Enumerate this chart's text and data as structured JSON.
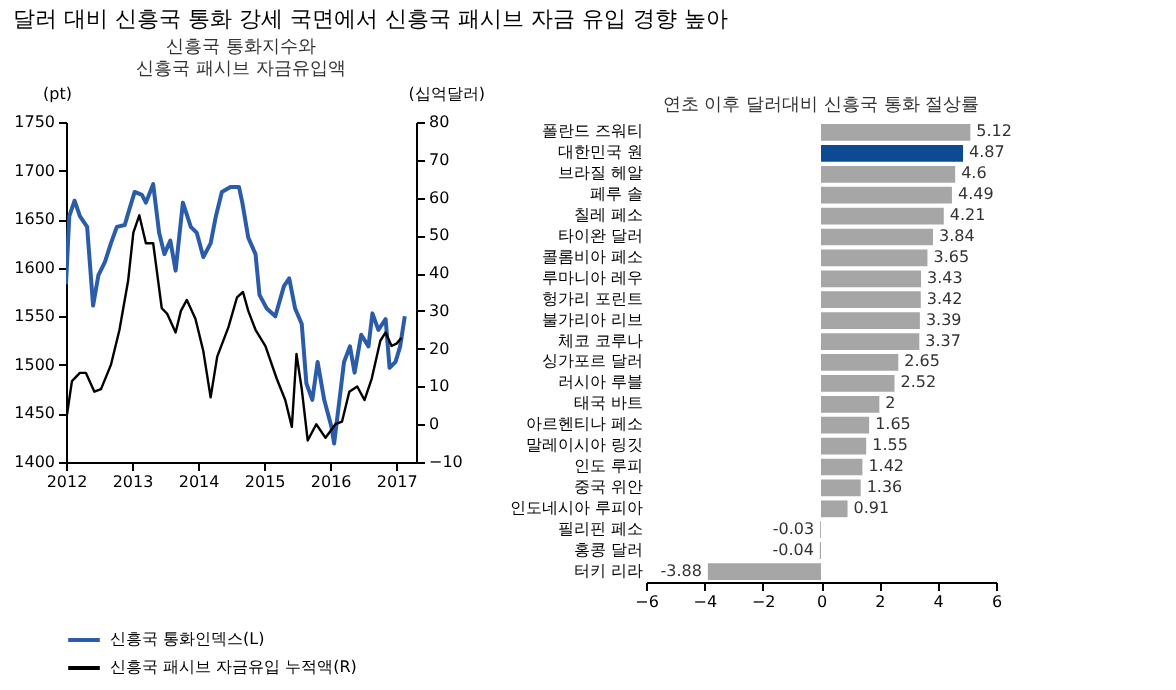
{
  "chart_data": [
    {
      "type": "line",
      "title": "신흥국 통화지수와\n신흥국 패시브 자금유입액",
      "annotations": [
        "달러 대비 신흥국 통화 강세 국면에서 신흥국 패시브 자금 유입 경향 높아"
      ],
      "ylabel": "(pt)",
      "y2label": "(십억달러)",
      "xlim": [
        2012,
        2017.3
      ],
      "xticks": [
        2012,
        2013,
        2014,
        2015,
        2016,
        2017
      ],
      "ylim": [
        1400,
        1750
      ],
      "yticks": [
        1400,
        1450,
        1500,
        1550,
        1600,
        1650,
        1700,
        1750
      ],
      "y2lim": [
        -10,
        80
      ],
      "y2ticks": [
        -10,
        0,
        10,
        20,
        30,
        40,
        50,
        60,
        70,
        80
      ],
      "grid": false,
      "legend": "bottom",
      "series": [
        {
          "name": "신흥국 통화인덱스(L)",
          "color": "#2a5caa",
          "x": [
            2012,
            2012.05,
            2012.13,
            2012.21,
            2012.32,
            2012.41,
            2012.49,
            2012.59,
            2012.68,
            2012.77,
            2012.89,
            2012.95,
            2013.04,
            2013.15,
            2013.21,
            2013.32,
            2013.41,
            2013.49,
            2013.58,
            2013.66,
            2013.77,
            2013.89,
            2013.98,
            2014.08,
            2014.19,
            2014.27,
            2014.36,
            2014.49,
            2014.62,
            2014.67,
            2014.76,
            2014.87,
            2014.93,
            2015.04,
            2015.17,
            2015.3,
            2015.38,
            2015.47,
            2015.57,
            2015.64,
            2015.73,
            2015.81,
            2015.91,
            2016.02,
            2016.06,
            2016.15,
            2016.21,
            2016.3,
            2016.37,
            2016.47,
            2016.58,
            2016.64,
            2016.73,
            2016.84,
            2016.9,
            2016.99,
            2017.06,
            2017.13
          ],
          "values": [
            1583,
            1653,
            1669,
            1653,
            1642,
            1561,
            1592,
            1606,
            1625,
            1642,
            1644,
            1658,
            1678,
            1675,
            1667,
            1686,
            1636,
            1614,
            1628,
            1597,
            1667,
            1642,
            1636,
            1611,
            1625,
            1653,
            1678,
            1683,
            1683,
            1667,
            1631,
            1614,
            1572,
            1558,
            1550,
            1581,
            1589,
            1558,
            1542,
            1481,
            1464,
            1503,
            1464,
            1436,
            1419,
            1469,
            1503,
            1519,
            1492,
            1531,
            1519,
            1553,
            1536,
            1547,
            1497,
            1503,
            1519,
            1550
          ]
        },
        {
          "name": "신흥국 패시브 자금유입 누적액(R)",
          "color": "#000000",
          "axis": "y2",
          "x": [
            2012,
            2012.09,
            2012.21,
            2012.3,
            2012.43,
            2012.53,
            2012.68,
            2012.81,
            2012.94,
            2013.02,
            2013.11,
            2013.21,
            2013.32,
            2013.45,
            2013.53,
            2013.66,
            2013.74,
            2013.83,
            2013.96,
            2014.08,
            2014.19,
            2014.29,
            2014.46,
            2014.59,
            2014.68,
            2014.76,
            2014.87,
            2015.02,
            2015.19,
            2015.32,
            2015.42,
            2015.49,
            2015.57,
            2015.66,
            2015.79,
            2015.93,
            2016.08,
            2016.18,
            2016.29,
            2016.41,
            2016.52,
            2016.63,
            2016.76,
            2016.84,
            2016.93,
            2017.01,
            2017.08
          ],
          "values": [
            0.7,
            11.4,
            13.6,
            13.6,
            8.6,
            9.3,
            15.7,
            25,
            37.9,
            50.7,
            55.3,
            47.9,
            47.9,
            30.7,
            29.3,
            24.3,
            30,
            32.9,
            27.9,
            19.3,
            7.1,
            17.9,
            25.7,
            33.6,
            35,
            30,
            25,
            20.7,
            12.1,
            6.4,
            -0.7,
            18.6,
            9.3,
            -4.3,
            0,
            -3.6,
            0,
            0.7,
            8.6,
            10,
            6.4,
            12.1,
            22.1,
            24.3,
            20.7,
            21.4,
            22.9
          ]
        }
      ]
    },
    {
      "type": "bar",
      "orientation": "horizontal",
      "title": "연초 이후 달러대비 신흥국 통화 절상률",
      "categories": [
        "폴란드 즈워티",
        "대한민국 원",
        "브라질 헤알",
        "페루 솔",
        "칠레 페소",
        "타이완 달러",
        "콜롬비아 페소",
        "루마니아 레우",
        "헝가리 포린트",
        "불가리아 리브",
        "체코 코루나",
        "싱가포르 달러",
        "러시아 루블",
        "태국 바트",
        "아르헨티나 페소",
        "말레이시아 링깃",
        "인도 루피",
        "중국 위안",
        "인도네시아 루피아",
        "필리핀 페소",
        "홍콩 달러",
        "터키 리라"
      ],
      "values": [
        5.12,
        4.87,
        4.6,
        4.49,
        4.21,
        3.84,
        3.65,
        3.43,
        3.42,
        3.39,
        3.37,
        2.65,
        2.52,
        2,
        1.65,
        1.55,
        1.42,
        1.36,
        0.91,
        -0.03,
        -0.04,
        -3.88
      ],
      "colors": [
        "#a6a6a6",
        "#0c4a94",
        "#a6a6a6",
        "#a6a6a6",
        "#a6a6a6",
        "#a6a6a6",
        "#a6a6a6",
        "#a6a6a6",
        "#a6a6a6",
        "#a6a6a6",
        "#a6a6a6",
        "#a6a6a6",
        "#a6a6a6",
        "#a6a6a6",
        "#a6a6a6",
        "#a6a6a6",
        "#a6a6a6",
        "#a6a6a6",
        "#a6a6a6",
        "#a6a6a6",
        "#a6a6a6",
        "#a6a6a6"
      ],
      "xlim": [
        -6,
        6
      ],
      "xticks": [
        -6,
        -4,
        -2,
        0,
        2,
        4,
        6
      ],
      "data_labels": true,
      "grid": false
    }
  ]
}
